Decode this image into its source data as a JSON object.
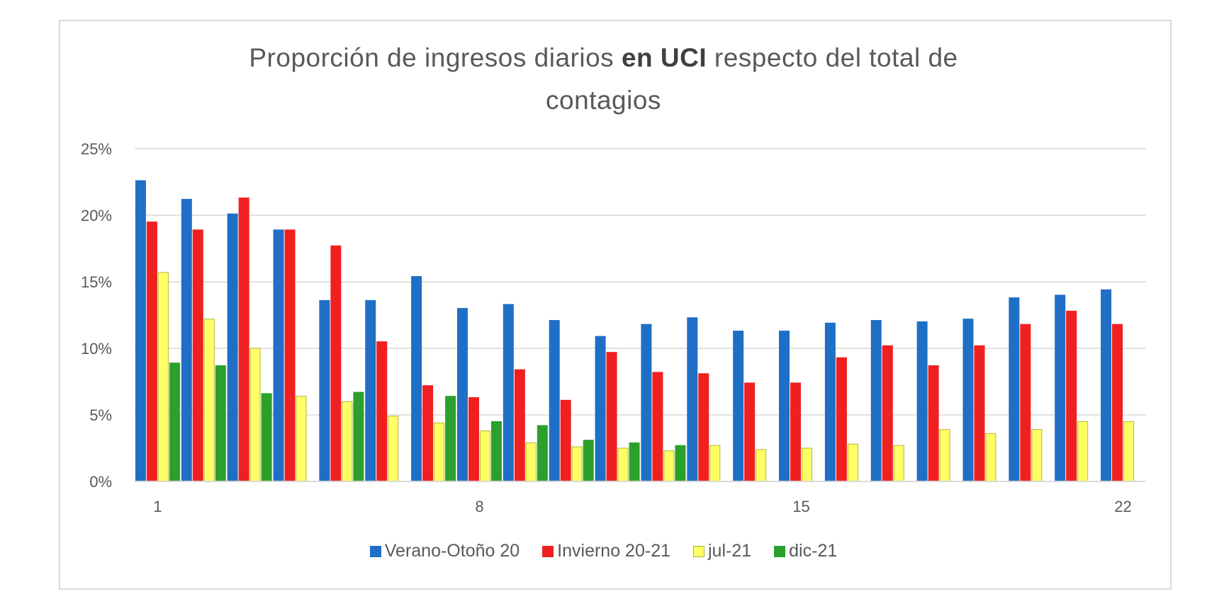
{
  "chart_data": {
    "type": "bar",
    "title_parts": [
      "Proporción de ingresos diarios ",
      "en UCI",
      " respecto del total de",
      "contagios"
    ],
    "x": [
      1,
      2,
      3,
      4,
      5,
      6,
      7,
      8,
      9,
      10,
      11,
      12,
      13,
      14,
      15,
      16,
      17,
      18,
      19,
      20,
      21,
      22
    ],
    "x_tick_labels": [
      "1",
      "8",
      "15",
      "22"
    ],
    "x_tick_values": [
      1,
      8,
      15,
      22
    ],
    "ylim": [
      0,
      25
    ],
    "y_tick_labels": [
      "0%",
      "5%",
      "10%",
      "15%",
      "20%",
      "25%"
    ],
    "y_tick_values": [
      0,
      5,
      10,
      15,
      20,
      25
    ],
    "grid": true,
    "legend_position": "bottom",
    "series": [
      {
        "name": "Verano-Otoño 20",
        "color": "#1f6fc6",
        "border": "#1f6fc6",
        "values": [
          22.6,
          21.2,
          20.1,
          18.9,
          13.6,
          13.6,
          15.4,
          13.0,
          13.3,
          12.1,
          10.9,
          11.8,
          12.3,
          11.3,
          11.3,
          11.9,
          12.1,
          12.0,
          12.2,
          13.8,
          14.0,
          14.4
        ]
      },
      {
        "name": "Invierno 20-21",
        "color": "#f02020",
        "border": "#f02020",
        "values": [
          19.5,
          18.9,
          21.3,
          18.9,
          17.7,
          10.5,
          7.2,
          6.3,
          8.4,
          6.1,
          9.7,
          8.2,
          8.1,
          7.4,
          7.4,
          9.3,
          10.2,
          8.7,
          10.2,
          11.8,
          12.8,
          11.8
        ]
      },
      {
        "name": "jul-21",
        "color": "#ffff66",
        "border": "#b5b53a",
        "values": [
          15.7,
          12.2,
          10.0,
          6.4,
          6.0,
          4.9,
          4.4,
          3.8,
          2.9,
          2.6,
          2.5,
          2.3,
          2.7,
          2.4,
          2.5,
          2.8,
          2.7,
          3.9,
          3.6,
          3.9,
          4.5,
          4.5
        ]
      },
      {
        "name": "dic-21",
        "color": "#2ca02c",
        "border": "#2ca02c",
        "values": [
          8.9,
          8.7,
          6.6,
          null,
          6.7,
          null,
          6.4,
          4.5,
          4.2,
          3.1,
          2.9,
          2.7,
          null,
          null,
          null,
          null,
          null,
          null,
          null,
          null,
          null,
          null
        ]
      }
    ]
  }
}
